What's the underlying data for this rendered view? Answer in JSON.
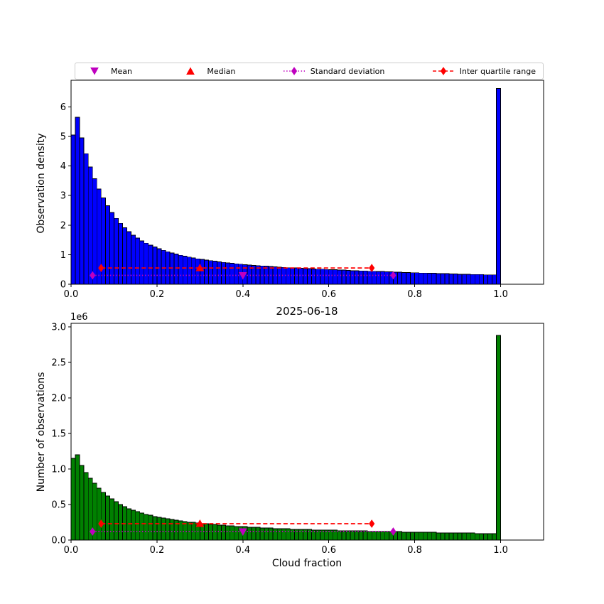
{
  "legend": {
    "items": [
      {
        "label": "Mean",
        "marker": "triangle-down",
        "line": "none",
        "color": "#bf00bf"
      },
      {
        "label": "Median",
        "marker": "triangle-up",
        "line": "none",
        "color": "#ff0000"
      },
      {
        "label": "Standard deviation",
        "marker": "diamond",
        "line": "dotted",
        "color": "#bf00bf"
      },
      {
        "label": "Inter quartile range",
        "marker": "diamond",
        "line": "dashed",
        "color": "#ff0000"
      }
    ]
  },
  "chart_data": [
    {
      "type": "bar",
      "title": "",
      "xlabel": "",
      "ylabel": "Observation density",
      "bar_color": "#0000ff",
      "edge_color": "#000000",
      "bin_start": 0.0,
      "bin_width": 0.01,
      "xlim": [
        0.0,
        1.1
      ],
      "ylim": [
        0.0,
        6.9
      ],
      "xtick_labels": [
        "0.0",
        "0.2",
        "0.4",
        "0.6",
        "0.8",
        "1.0"
      ],
      "ytick_labels": [
        "0",
        "1",
        "2",
        "3",
        "4",
        "5",
        "6"
      ],
      "values": [
        5.05,
        5.65,
        4.95,
        4.42,
        3.97,
        3.57,
        3.22,
        2.92,
        2.66,
        2.43,
        2.23,
        2.06,
        1.91,
        1.78,
        1.66,
        1.56,
        1.47,
        1.39,
        1.32,
        1.26,
        1.2,
        1.15,
        1.1,
        1.06,
        1.02,
        0.98,
        0.95,
        0.92,
        0.89,
        0.86,
        0.84,
        0.82,
        0.8,
        0.78,
        0.76,
        0.74,
        0.72,
        0.71,
        0.69,
        0.68,
        0.66,
        0.65,
        0.64,
        0.63,
        0.62,
        0.61,
        0.6,
        0.59,
        0.58,
        0.57,
        0.56,
        0.56,
        0.55,
        0.54,
        0.53,
        0.53,
        0.52,
        0.51,
        0.51,
        0.5,
        0.49,
        0.49,
        0.48,
        0.48,
        0.47,
        0.46,
        0.46,
        0.45,
        0.45,
        0.44,
        0.44,
        0.43,
        0.43,
        0.42,
        0.42,
        0.41,
        0.41,
        0.4,
        0.4,
        0.39,
        0.39,
        0.38,
        0.38,
        0.37,
        0.37,
        0.36,
        0.36,
        0.36,
        0.35,
        0.35,
        0.34,
        0.34,
        0.34,
        0.33,
        0.33,
        0.33,
        0.32,
        0.32,
        0.32,
        6.62
      ],
      "markers": {
        "mean": {
          "x": 0.4,
          "y": 0.3
        },
        "median": {
          "x": 0.3,
          "y": 0.55
        },
        "std_range": {
          "x1": 0.05,
          "x2": 0.75,
          "y": 0.3
        },
        "iqr_range": {
          "x1": 0.07,
          "x2": 0.7,
          "y": 0.55
        }
      }
    },
    {
      "type": "bar",
      "title": "2025-06-18",
      "xlabel": "Cloud fraction",
      "ylabel": "Number of observations",
      "offset_label": "1e6",
      "bar_color": "#008000",
      "edge_color": "#000000",
      "bin_start": 0.0,
      "bin_width": 0.01,
      "xlim": [
        0.0,
        1.1
      ],
      "ylim": [
        0.0,
        3.05
      ],
      "xtick_labels": [
        "0.0",
        "0.2",
        "0.4",
        "0.6",
        "0.8",
        "1.0"
      ],
      "ytick_labels": [
        "0.0",
        "0.5",
        "1.0",
        "1.5",
        "2.0",
        "2.5",
        "3.0"
      ],
      "values": [
        1.15,
        1.2,
        1.05,
        0.95,
        0.87,
        0.8,
        0.73,
        0.67,
        0.62,
        0.58,
        0.54,
        0.5,
        0.47,
        0.44,
        0.42,
        0.4,
        0.38,
        0.36,
        0.35,
        0.33,
        0.32,
        0.31,
        0.3,
        0.29,
        0.28,
        0.27,
        0.26,
        0.25,
        0.25,
        0.24,
        0.23,
        0.23,
        0.22,
        0.22,
        0.21,
        0.21,
        0.2,
        0.2,
        0.19,
        0.19,
        0.19,
        0.18,
        0.18,
        0.18,
        0.17,
        0.17,
        0.17,
        0.16,
        0.16,
        0.16,
        0.16,
        0.15,
        0.15,
        0.15,
        0.15,
        0.15,
        0.14,
        0.14,
        0.14,
        0.14,
        0.14,
        0.14,
        0.13,
        0.13,
        0.13,
        0.13,
        0.13,
        0.13,
        0.13,
        0.12,
        0.12,
        0.12,
        0.12,
        0.12,
        0.12,
        0.12,
        0.12,
        0.11,
        0.11,
        0.11,
        0.11,
        0.11,
        0.11,
        0.11,
        0.11,
        0.1,
        0.1,
        0.1,
        0.1,
        0.1,
        0.1,
        0.1,
        0.1,
        0.1,
        0.09,
        0.09,
        0.09,
        0.09,
        0.09,
        2.88
      ],
      "markers": {
        "mean": {
          "x": 0.4,
          "y": 0.12
        },
        "median": {
          "x": 0.3,
          "y": 0.23
        },
        "std_range": {
          "x1": 0.05,
          "x2": 0.75,
          "y": 0.12
        },
        "iqr_range": {
          "x1": 0.07,
          "x2": 0.7,
          "y": 0.23
        }
      }
    }
  ]
}
